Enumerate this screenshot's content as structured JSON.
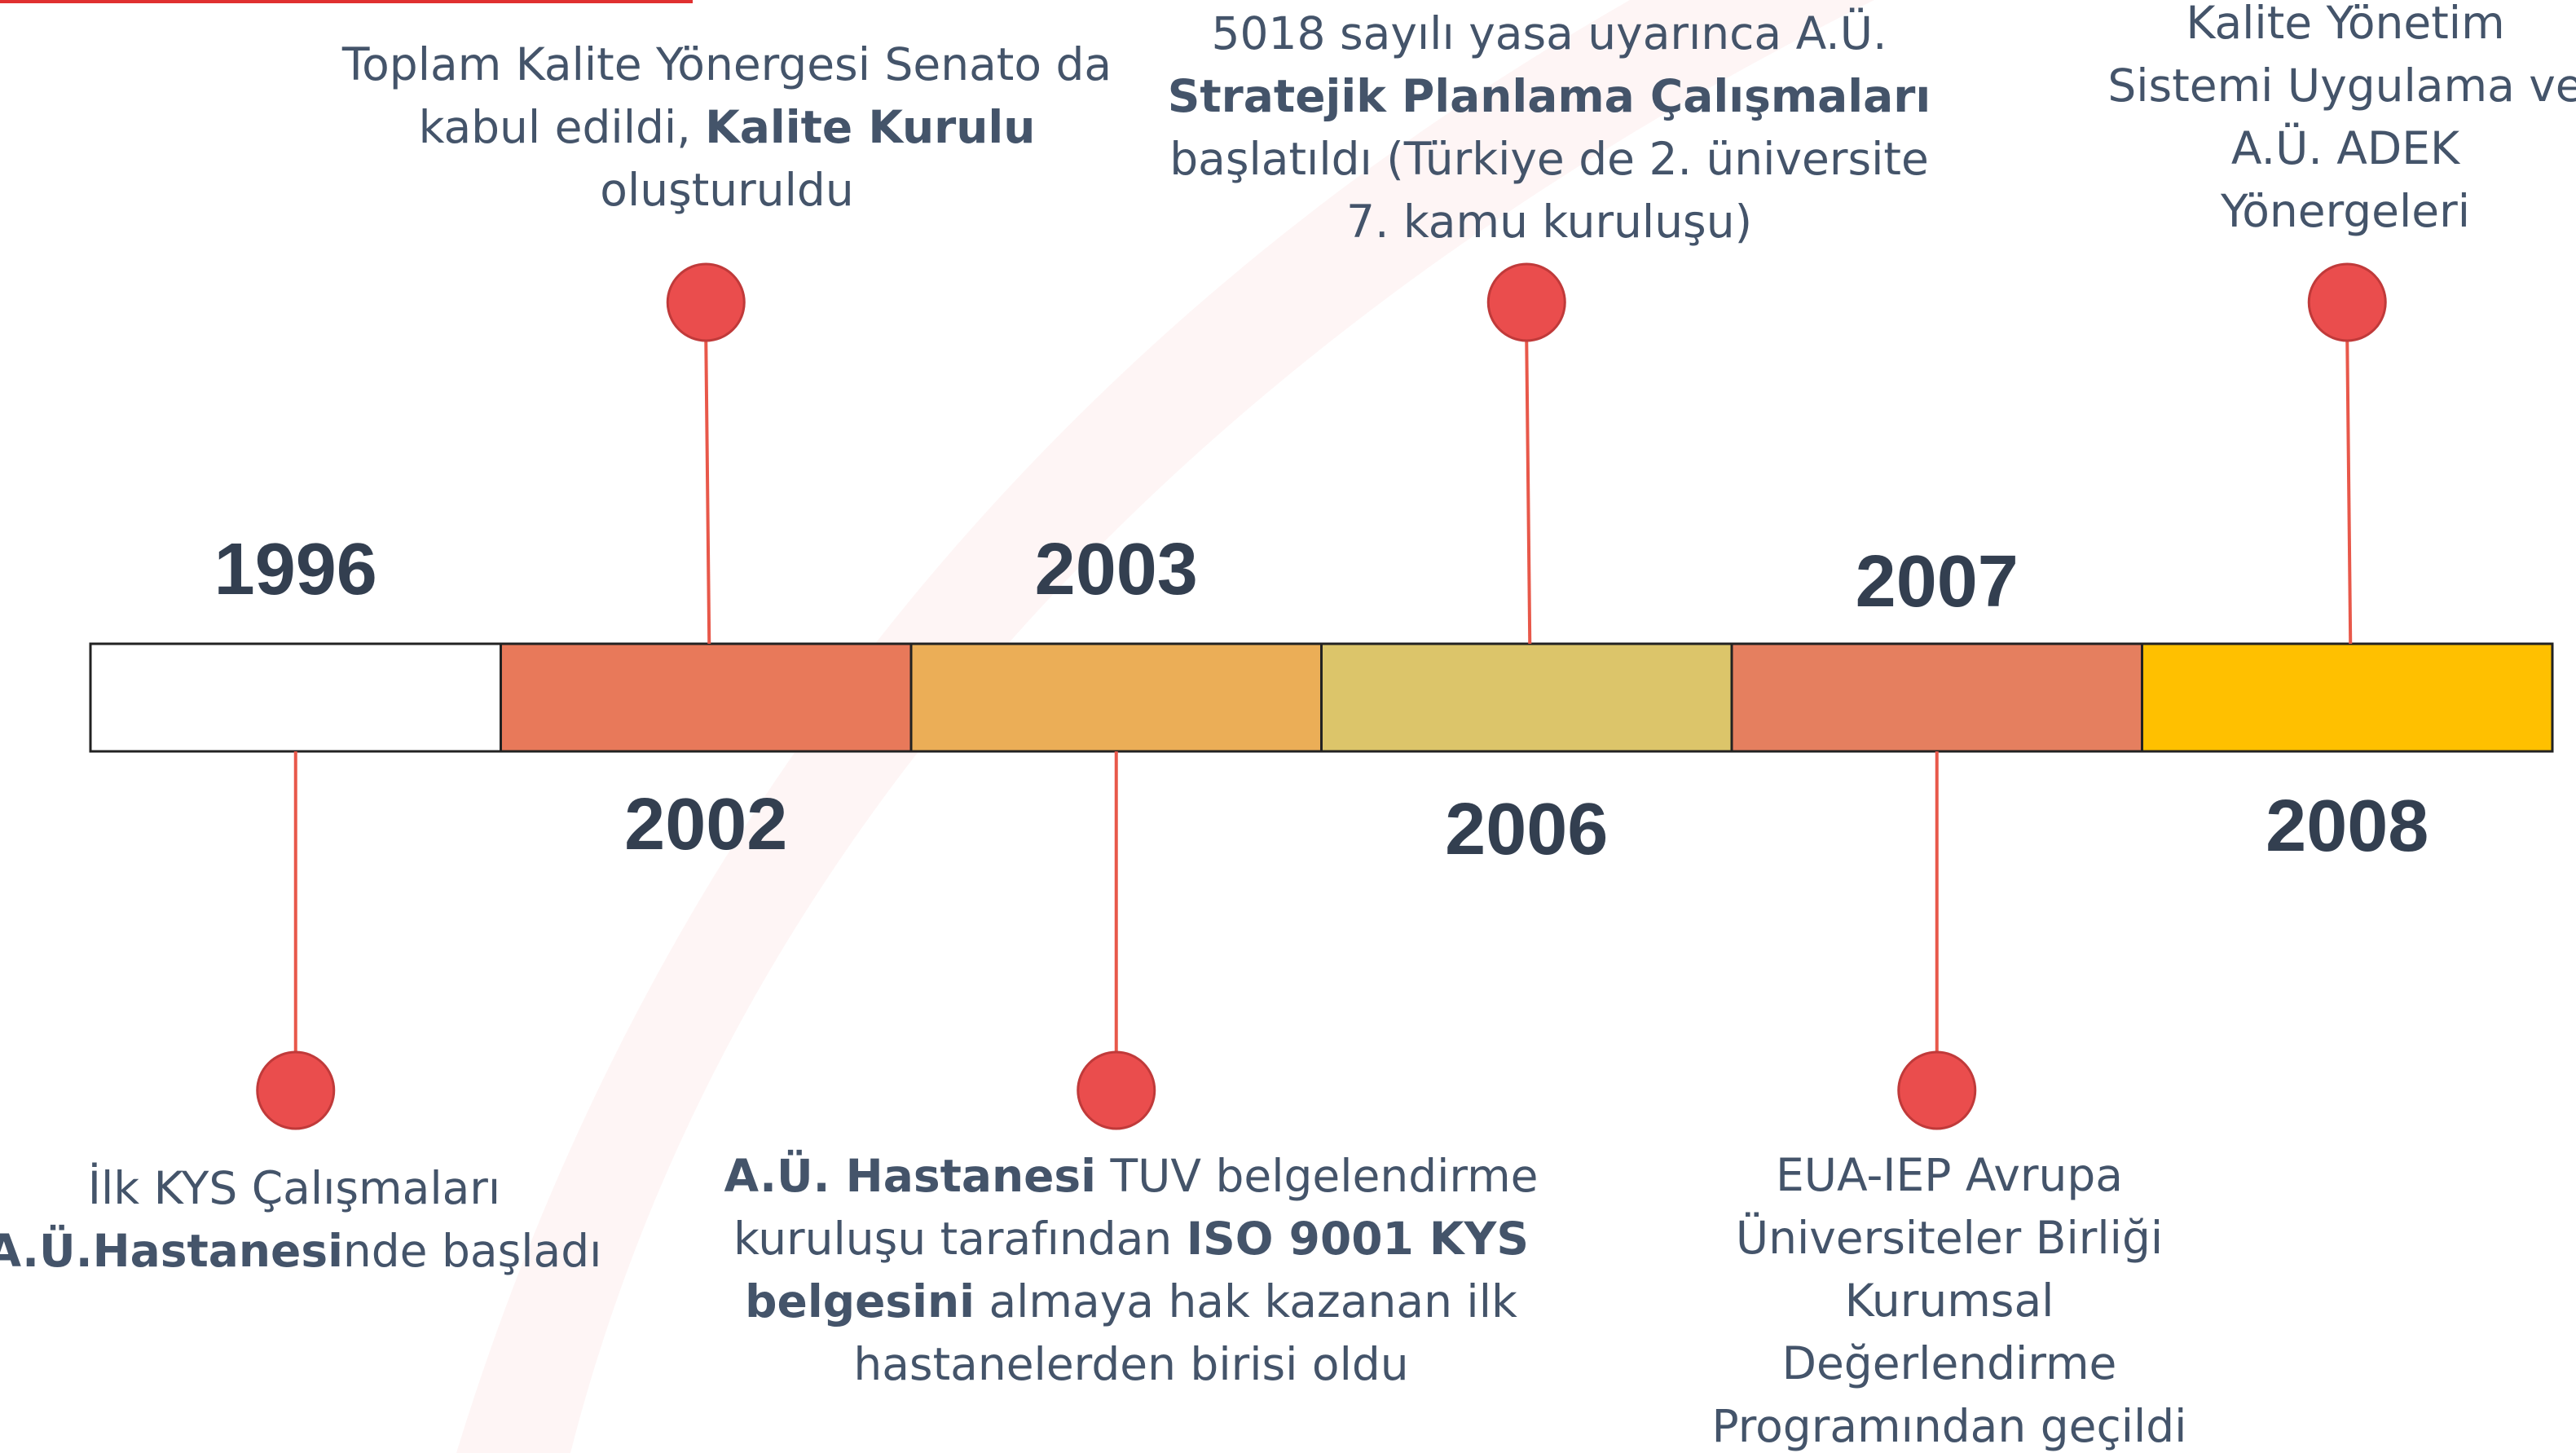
{
  "events": [
    {
      "year": "1996",
      "lines": [
        [
          {
            "t": "İlk KYS Çalışmaları",
            "b": false
          }
        ],
        [
          {
            "t": "A.Ü.Hastanesi",
            "b": true
          },
          {
            "t": "nde başladı",
            "b": false
          }
        ]
      ]
    },
    {
      "year": "2002",
      "lines": [
        [
          {
            "t": "Toplam Kalite Yönergesi Senato da",
            "b": false
          }
        ],
        [
          {
            "t": "kabul edildi, ",
            "b": false
          },
          {
            "t": "Kalite Kurulu",
            "b": true
          }
        ],
        [
          {
            "t": "oluşturuldu",
            "b": false
          }
        ]
      ]
    },
    {
      "year": "2003",
      "lines": [
        [
          {
            "t": "A.Ü. Hastanesi",
            "b": true
          },
          {
            "t": " TUV belgelendirme",
            "b": false
          }
        ],
        [
          {
            "t": "kuruluşu tarafından ",
            "b": false
          },
          {
            "t": "ISO 9001 KYS",
            "b": true
          }
        ],
        [
          {
            "t": "belgesini",
            "b": true
          },
          {
            "t": " almaya hak kazanan ilk",
            "b": false
          }
        ],
        [
          {
            "t": "hastanelerden birisi oldu",
            "b": false
          }
        ]
      ]
    },
    {
      "year": "2006",
      "lines": [
        [
          {
            "t": "5018 sayılı yasa uyarınca A.Ü.",
            "b": false
          }
        ],
        [
          {
            "t": "Stratejik Planlama Çalışmaları",
            "b": true
          }
        ],
        [
          {
            "t": "başlatıldı (Türkiye de 2. üniversite",
            "b": false
          }
        ],
        [
          {
            "t": "7. kamu kuruluşu)",
            "b": false
          }
        ]
      ]
    },
    {
      "year": "2007",
      "lines": [
        [
          {
            "t": "EUA-IEP Avrupa",
            "b": false
          }
        ],
        [
          {
            "t": "Üniversiteler Birliği",
            "b": false
          }
        ],
        [
          {
            "t": "Kurumsal",
            "b": false
          }
        ],
        [
          {
            "t": "Değerlendirme",
            "b": false
          }
        ],
        [
          {
            "t": "Programından geçildi",
            "b": false
          }
        ]
      ]
    },
    {
      "year": "2008",
      "lines": [
        [
          {
            "t": "Kalite Yönetim",
            "b": false
          }
        ],
        [
          {
            "t": "Sistemi Uygulama ve",
            "b": false
          }
        ],
        [
          {
            "t": "A.Ü. ADEK",
            "b": false
          }
        ],
        [
          {
            "t": "Yönergeleri",
            "b": false
          }
        ]
      ]
    }
  ],
  "colors": [
    "#ffffff",
    "#e8795a",
    "#ebae57",
    "#dcc56a",
    "#e57f5f",
    "#ffc000"
  ]
}
